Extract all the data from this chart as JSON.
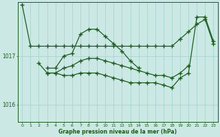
{
  "xlabel": "Graphe pression niveau de la mer (hPa)",
  "bg_color": "#cce8e4",
  "grid_color": "#a8d4d0",
  "line_color": "#1a5c1a",
  "xlim": [
    -0.5,
    23.5
  ],
  "ylim": [
    1015.65,
    1018.1
  ],
  "yticks": [
    1016.0,
    1017.0
  ],
  "xticks": [
    0,
    1,
    2,
    3,
    4,
    5,
    6,
    7,
    8,
    9,
    10,
    11,
    12,
    13,
    14,
    15,
    16,
    17,
    18,
    19,
    20,
    21,
    22,
    23
  ],
  "lineA_x": [
    0,
    1,
    2,
    3,
    4,
    5,
    6,
    7,
    8,
    9,
    10,
    11,
    12,
    13,
    14,
    15,
    16,
    17,
    18,
    19,
    20,
    21,
    22,
    23
  ],
  "lineA_y": [
    1018.05,
    1017.2,
    1017.2,
    1017.2,
    1017.2,
    1017.2,
    1017.2,
    1017.2,
    1017.2,
    1017.2,
    1017.2,
    1017.2,
    1017.2,
    1017.2,
    1017.2,
    1017.2,
    1017.2,
    1017.2,
    1017.2,
    1017.35,
    1017.5,
    1017.65,
    1017.75,
    1017.25
  ],
  "lineB_x": [
    3,
    4,
    5,
    6,
    7,
    8,
    9,
    10,
    11,
    12,
    13,
    14
  ],
  "lineB_y": [
    1016.75,
    1016.75,
    1017.0,
    1017.05,
    1017.45,
    1017.55,
    1017.55,
    1017.4,
    1017.25,
    1017.1,
    1016.9,
    1016.75
  ],
  "lineC_x": [
    2,
    3,
    4,
    5,
    6,
    7,
    8,
    9,
    10,
    11,
    12,
    13,
    14,
    15,
    16,
    17,
    18,
    19,
    20
  ],
  "lineC_y": [
    1016.85,
    1016.65,
    1016.65,
    1016.75,
    1016.8,
    1016.9,
    1016.95,
    1016.95,
    1016.9,
    1016.85,
    1016.8,
    1016.75,
    1016.7,
    1016.65,
    1016.6,
    1016.6,
    1016.55,
    1016.65,
    1016.8
  ],
  "lineD_x": [
    3,
    4,
    5,
    6,
    7,
    8,
    9,
    10,
    11,
    12,
    13,
    14,
    15,
    16,
    17,
    18,
    19,
    20,
    21,
    22,
    23
  ],
  "lineD_y": [
    1016.65,
    1016.65,
    1016.6,
    1016.6,
    1016.65,
    1016.65,
    1016.65,
    1016.6,
    1016.55,
    1016.5,
    1016.45,
    1016.45,
    1016.45,
    1016.45,
    1016.4,
    1016.35,
    1016.55,
    1016.65,
    1017.8,
    1017.8,
    1017.3
  ]
}
